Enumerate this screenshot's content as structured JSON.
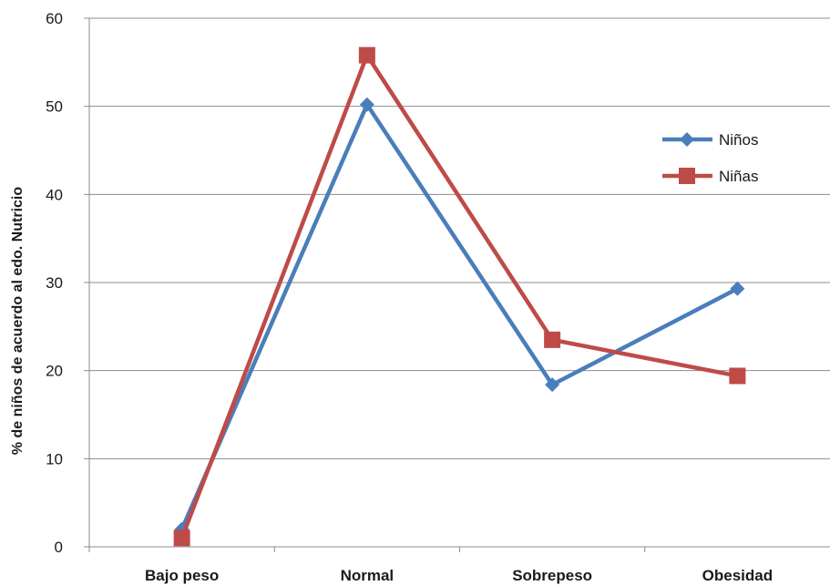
{
  "chart_data": {
    "type": "line",
    "categories": [
      "Bajo peso",
      "Normal",
      "Sobrepeso",
      "Obesidad"
    ],
    "series": [
      {
        "name": "Niños",
        "values": [
          2,
          50.2,
          18.4,
          29.3
        ],
        "color": "#4a7ebb",
        "marker": "diamond"
      },
      {
        "name": "Niñas",
        "values": [
          1,
          55.8,
          23.5,
          19.4
        ],
        "color": "#be4b48",
        "marker": "square"
      }
    ],
    "xlabel": "",
    "ylabel": "% de niños de acuerdo al edo. Nutricio",
    "ylim": [
      0,
      60
    ],
    "yticks": [
      0,
      10,
      20,
      30,
      40,
      50,
      60
    ],
    "grid": true,
    "legend_position": "right"
  }
}
